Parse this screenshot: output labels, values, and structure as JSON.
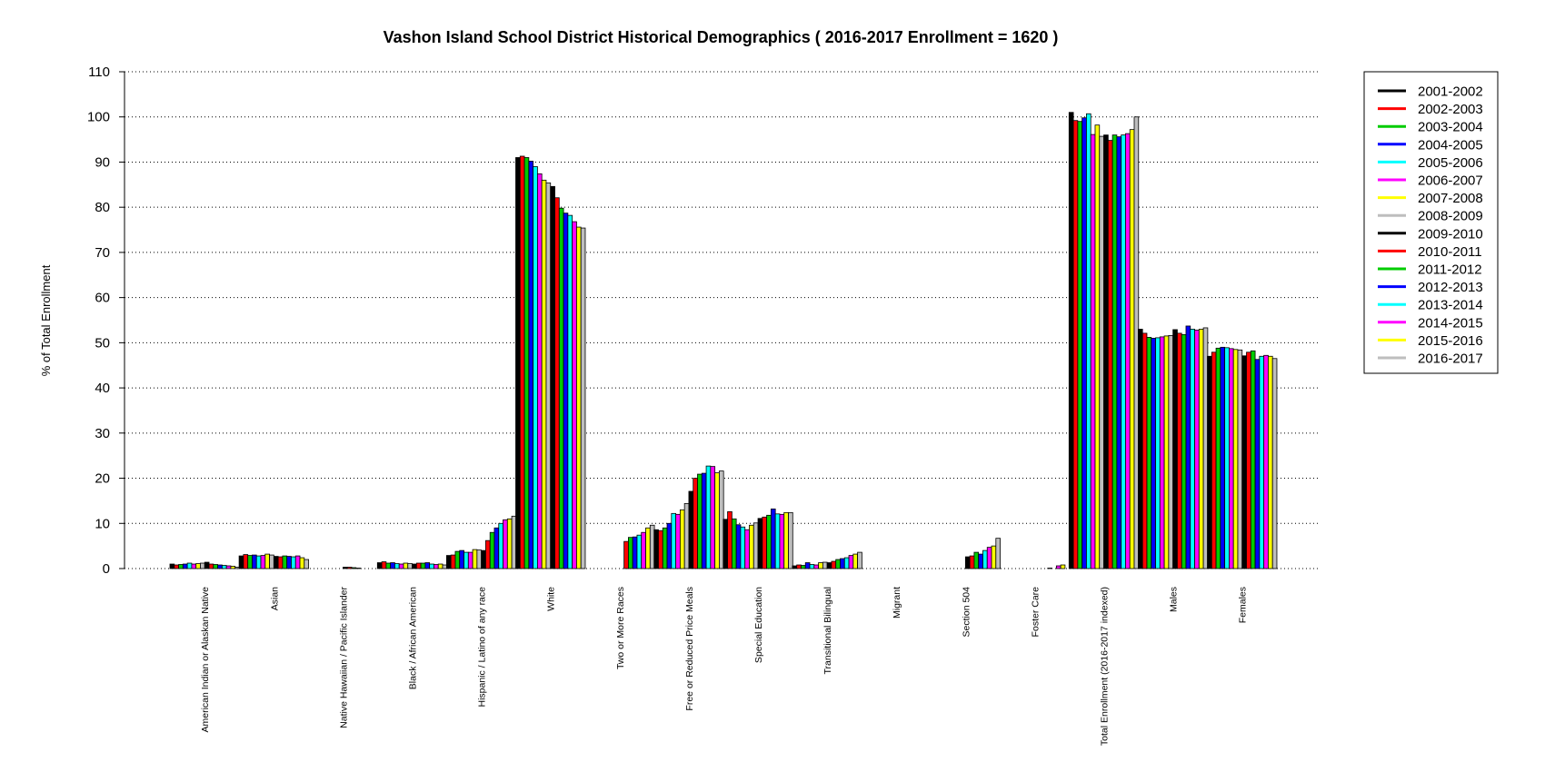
{
  "chart_data": {
    "type": "bar",
    "title": "Vashon Island School District Historical Demographics  ( 2016-2017 Enrollment =  1620 )",
    "xlabel": "",
    "ylabel": "% of Total Enrollment",
    "ylim": [
      0,
      110
    ],
    "yticks": [
      0,
      10,
      20,
      30,
      40,
      50,
      60,
      70,
      80,
      90,
      100,
      110
    ],
    "grid": "horizontal-dotted",
    "legend_position": "right",
    "categories": [
      "American Indian or Alaskan Native",
      "Asian",
      "Native Hawaiian / Pacific Islander",
      "Black / African American",
      "Hispanic / Latino of any race",
      "White",
      "Two or More Races",
      "Free or Reduced Price Meals",
      "Special Education",
      "Transitional Bilingual",
      "Migrant",
      "Section 504",
      "Foster Care",
      "Total Enrollment (2016-2017 indexed)",
      "Males",
      "Females"
    ],
    "series": [
      {
        "name": "2001-2002",
        "color": "#000000",
        "values": [
          1.0,
          2.8,
          0.0,
          1.3,
          2.9,
          91.0,
          0.0,
          8.6,
          10.9,
          0.6,
          0.0,
          0.0,
          0.0,
          101.0,
          53.0,
          47.0
        ]
      },
      {
        "name": "2002-2003",
        "color": "#ff0000",
        "values": [
          0.8,
          3.1,
          0.0,
          1.5,
          3.0,
          91.3,
          0.0,
          8.4,
          12.6,
          0.8,
          0.0,
          0.0,
          0.0,
          99.2,
          52.1,
          47.9
        ]
      },
      {
        "name": "2003-2004",
        "color": "#00cc00",
        "values": [
          0.9,
          2.9,
          0.0,
          1.2,
          3.8,
          91.0,
          0.0,
          9.0,
          11.0,
          0.7,
          0.0,
          0.0,
          0.0,
          99.0,
          51.2,
          48.8
        ]
      },
      {
        "name": "2004-2005",
        "color": "#0000ff",
        "values": [
          1.0,
          3.0,
          0.0,
          1.3,
          4.0,
          90.2,
          0.0,
          10.0,
          9.7,
          1.3,
          0.0,
          0.0,
          0.0,
          99.8,
          51.0,
          49.0
        ]
      },
      {
        "name": "2005-2006",
        "color": "#00ffff",
        "values": [
          1.2,
          2.8,
          0.0,
          1.1,
          3.6,
          89.0,
          0.0,
          12.2,
          9.2,
          0.9,
          0.0,
          0.0,
          0.0,
          100.7,
          51.1,
          48.9
        ]
      },
      {
        "name": "2006-2007",
        "color": "#ff00ff",
        "values": [
          1.0,
          2.9,
          0.0,
          1.0,
          3.6,
          87.4,
          0.0,
          12.0,
          8.6,
          0.8,
          0.0,
          0.0,
          0.0,
          96.1,
          51.3,
          48.7
        ]
      },
      {
        "name": "2007-2008",
        "color": "#ffff00",
        "values": [
          1.1,
          3.2,
          0.0,
          1.2,
          4.2,
          86.0,
          0.0,
          13.0,
          9.6,
          1.3,
          0.0,
          0.0,
          0.0,
          98.2,
          51.5,
          48.5
        ]
      },
      {
        "name": "2008-2009",
        "color": "#bebebe",
        "values": [
          1.2,
          3.0,
          0.0,
          1.1,
          4.1,
          85.4,
          0.0,
          14.4,
          10.1,
          1.4,
          0.0,
          0.0,
          0.0,
          95.7,
          51.6,
          48.4
        ]
      },
      {
        "name": "2009-2010",
        "color": "#000000",
        "values": [
          1.4,
          2.7,
          0.3,
          1.0,
          4.0,
          84.6,
          0.0,
          17.1,
          11.1,
          1.3,
          0.0,
          2.6,
          0.0,
          96.0,
          52.9,
          47.1
        ]
      },
      {
        "name": "2010-2011",
        "color": "#ff0000",
        "values": [
          1.0,
          2.6,
          0.3,
          1.2,
          6.2,
          82.1,
          6.0,
          20.0,
          11.4,
          1.6,
          0.0,
          2.8,
          0.0,
          94.8,
          52.1,
          47.9
        ]
      },
      {
        "name": "2011-2012",
        "color": "#00cc00",
        "values": [
          0.9,
          2.8,
          0.2,
          1.2,
          8.0,
          79.8,
          6.9,
          20.9,
          11.8,
          2.0,
          0.0,
          3.6,
          0.0,
          96.0,
          51.8,
          48.2
        ]
      },
      {
        "name": "2012-2013",
        "color": "#0000ff",
        "values": [
          0.8,
          2.7,
          0.1,
          1.3,
          9.0,
          78.7,
          7.0,
          21.1,
          13.2,
          2.2,
          0.0,
          3.2,
          0.1,
          95.6,
          53.7,
          46.3
        ]
      },
      {
        "name": "2013-2014",
        "color": "#00ffff",
        "values": [
          0.7,
          2.6,
          0.0,
          1.0,
          10.0,
          78.2,
          7.4,
          22.7,
          12.1,
          2.4,
          0.0,
          4.0,
          0.0,
          96.0,
          53.0,
          47.0
        ]
      },
      {
        "name": "2014-2015",
        "color": "#ff00ff",
        "values": [
          0.6,
          2.8,
          0.0,
          0.9,
          10.8,
          76.8,
          8.0,
          22.6,
          12.0,
          2.9,
          0.0,
          4.7,
          0.6,
          96.3,
          52.8,
          47.2
        ]
      },
      {
        "name": "2015-2016",
        "color": "#ffff00",
        "values": [
          0.5,
          2.4,
          0.0,
          1.0,
          11.0,
          75.6,
          9.0,
          21.2,
          12.4,
          3.2,
          0.0,
          5.0,
          0.8,
          97.2,
          53.0,
          47.0
        ]
      },
      {
        "name": "2016-2017",
        "color": "#bebebe",
        "values": [
          0.3,
          2.0,
          0.0,
          0.8,
          11.6,
          75.4,
          9.6,
          21.6,
          12.4,
          3.6,
          0.0,
          6.7,
          0.0,
          100.0,
          53.3,
          46.5
        ]
      }
    ]
  }
}
